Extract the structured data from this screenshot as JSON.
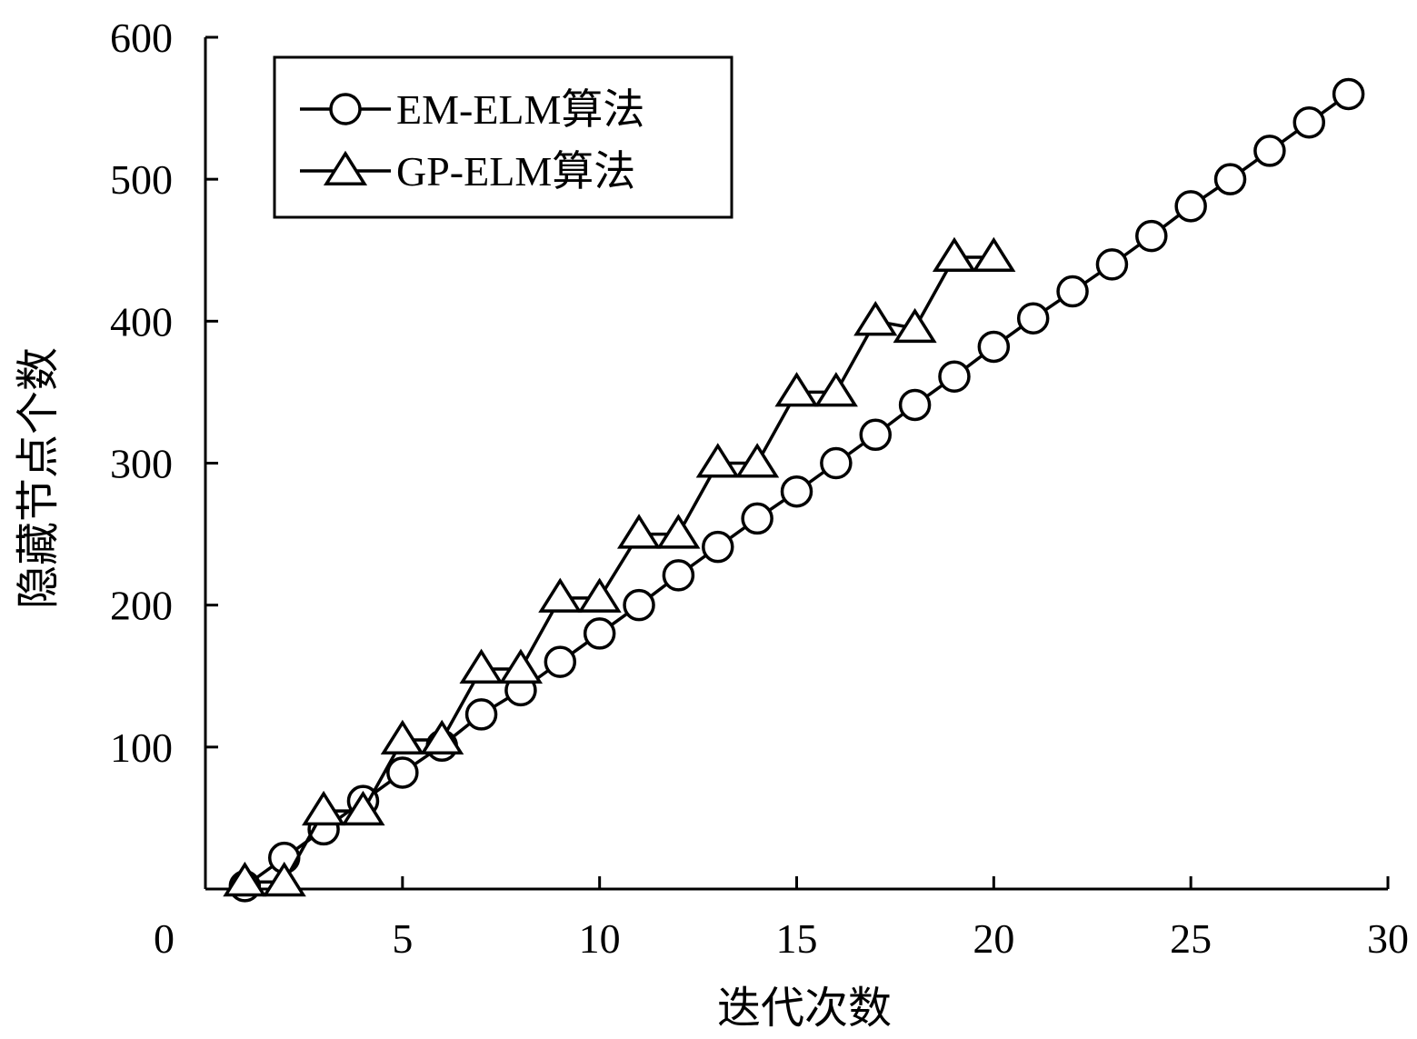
{
  "chart_data": {
    "type": "line",
    "xlabel": "迭代次数",
    "ylabel": "隐藏节点个数",
    "xlim": [
      0,
      30
    ],
    "ylim": [
      0,
      600
    ],
    "x_ticks": [
      0,
      5,
      10,
      15,
      20,
      25,
      30
    ],
    "y_ticks": [
      100,
      200,
      300,
      400,
      500,
      600
    ],
    "x_tick_labels": [
      "0",
      "5",
      "10",
      "15",
      "20",
      "25",
      "30"
    ],
    "y_tick_labels": [
      "100",
      "200",
      "300",
      "400",
      "500",
      "600"
    ],
    "grid": false,
    "legend_position": "top-left",
    "series": [
      {
        "name": "EM-ELM算法",
        "marker": "circle",
        "x": [
          1,
          2,
          3,
          4,
          5,
          6,
          7,
          8,
          9,
          10,
          11,
          12,
          13,
          14,
          15,
          16,
          17,
          18,
          19,
          20,
          21,
          22,
          23,
          24,
          25,
          26,
          27,
          28,
          29
        ],
        "y": [
          2,
          22,
          42,
          62,
          82,
          101,
          123,
          140,
          160,
          180,
          200,
          221,
          241,
          261,
          280,
          300,
          320,
          341,
          361,
          382,
          402,
          421,
          440,
          460,
          481,
          500,
          520,
          540,
          560
        ]
      },
      {
        "name": "GP-ELM算法",
        "marker": "triangle",
        "x": [
          1,
          2,
          3,
          4,
          5,
          6,
          7,
          8,
          9,
          10,
          11,
          12,
          13,
          14,
          15,
          16,
          17,
          18,
          19,
          20
        ],
        "y": [
          5,
          5,
          55,
          55,
          105,
          105,
          155,
          155,
          205,
          205,
          250,
          250,
          300,
          300,
          350,
          350,
          400,
          395,
          445,
          445
        ]
      }
    ]
  }
}
